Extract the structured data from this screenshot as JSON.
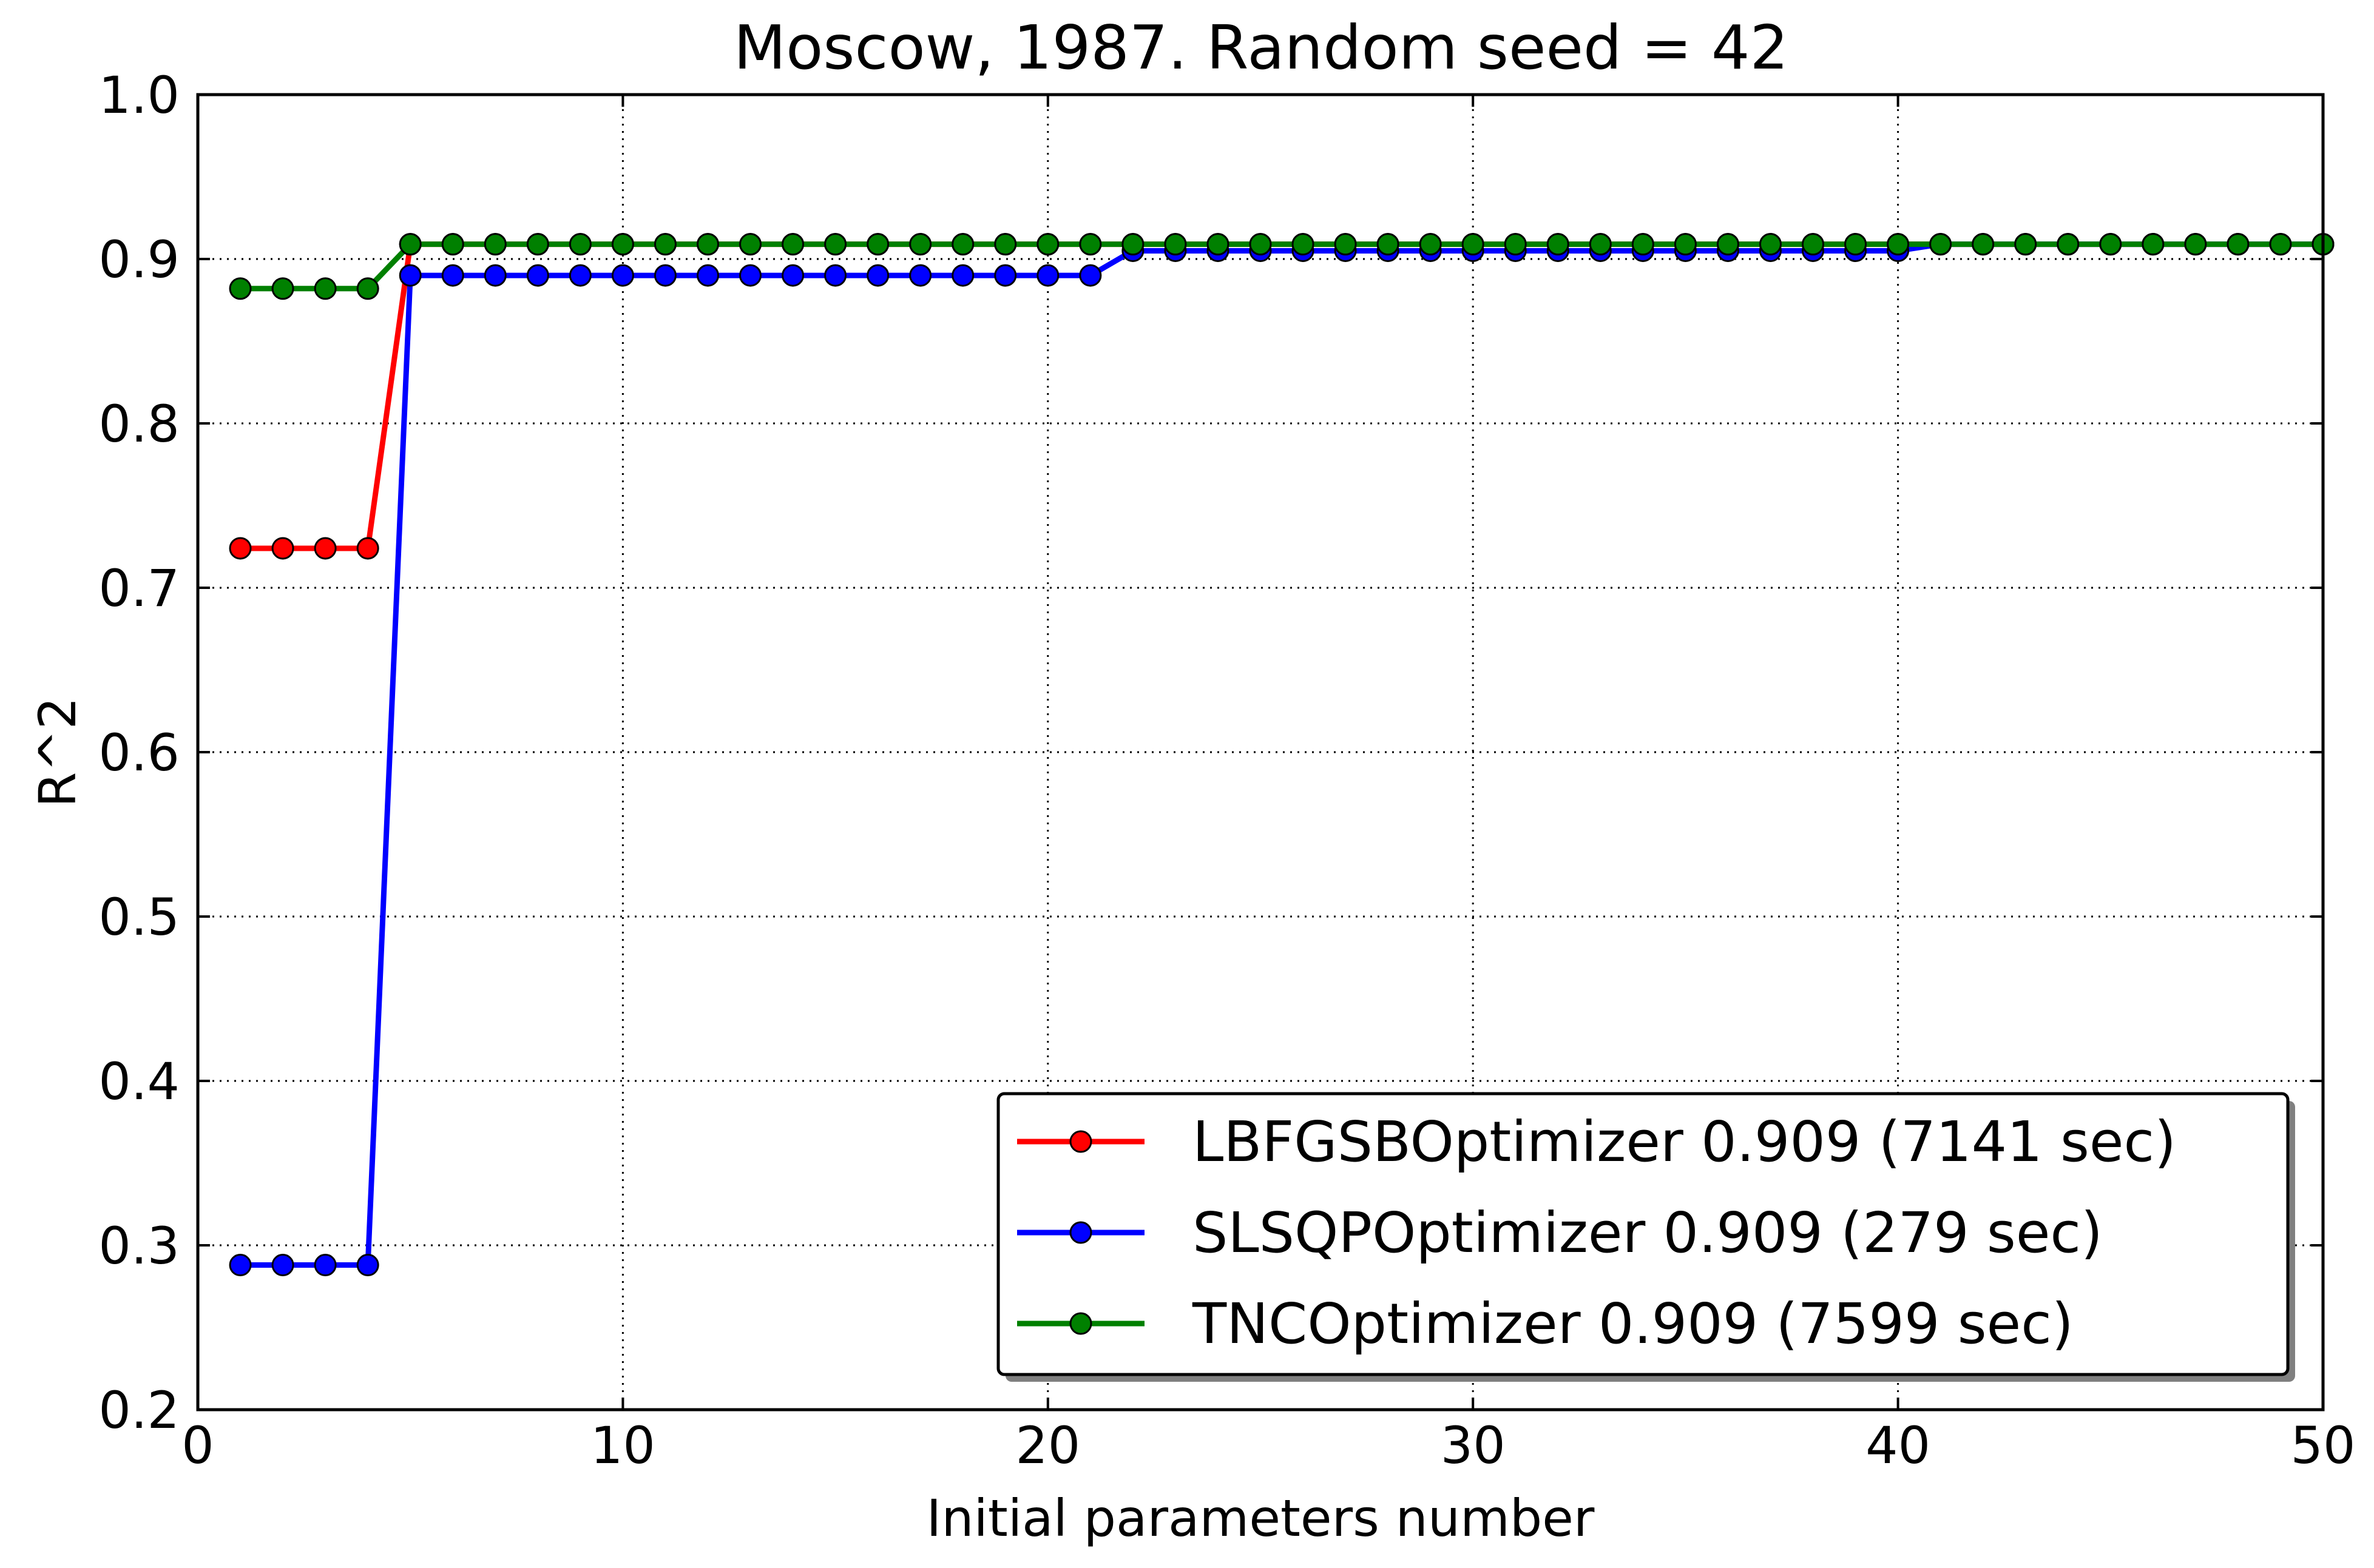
{
  "chart_data": {
    "type": "line",
    "title": "Moscow, 1987. Random seed = 42",
    "xlabel": "Initial parameters number",
    "ylabel": "R^2",
    "xlim": [
      0,
      50
    ],
    "ylim": [
      0.2,
      1.0
    ],
    "xticks": [
      0,
      10,
      20,
      30,
      40,
      50
    ],
    "xtick_labels": [
      "0",
      "10",
      "20",
      "30",
      "40",
      "50"
    ],
    "yticks": [
      0.2,
      0.3,
      0.4,
      0.5,
      0.6,
      0.7,
      0.8,
      0.9,
      1.0
    ],
    "ytick_labels": [
      "0.2",
      "0.3",
      "0.4",
      "0.5",
      "0.6",
      "0.7",
      "0.8",
      "0.9",
      "1.0"
    ],
    "grid": true,
    "legend_position": "lower-right",
    "x": [
      1,
      2,
      3,
      4,
      5,
      6,
      7,
      8,
      9,
      10,
      11,
      12,
      13,
      14,
      15,
      16,
      17,
      18,
      19,
      20,
      21,
      22,
      23,
      24,
      25,
      26,
      27,
      28,
      29,
      30,
      31,
      32,
      33,
      34,
      35,
      36,
      37,
      38,
      39,
      40,
      41,
      42,
      43,
      44,
      45,
      46,
      47,
      48,
      49,
      50
    ],
    "series": [
      {
        "name": "LBFGSBOptimizer 0.909 (7141 sec)",
        "color": "#ff0000",
        "values": [
          0.724,
          0.724,
          0.724,
          0.724,
          0.909,
          0.909,
          0.909,
          0.909,
          0.909,
          0.909,
          0.909,
          0.909,
          0.909,
          0.909,
          0.909,
          0.909,
          0.909,
          0.909,
          0.909,
          0.909,
          0.909,
          0.909,
          0.909,
          0.909,
          0.909,
          0.909,
          0.909,
          0.909,
          0.909,
          0.909,
          0.909,
          0.909,
          0.909,
          0.909,
          0.909,
          0.909,
          0.909,
          0.909,
          0.909,
          0.909,
          0.909,
          0.909,
          0.909,
          0.909,
          0.909,
          0.909,
          0.909,
          0.909,
          0.909,
          0.909
        ]
      },
      {
        "name": "SLSQPOptimizer 0.909 (279 sec)",
        "color": "#0000ff",
        "values": [
          0.288,
          0.288,
          0.288,
          0.288,
          0.89,
          0.89,
          0.89,
          0.89,
          0.89,
          0.89,
          0.89,
          0.89,
          0.89,
          0.89,
          0.89,
          0.89,
          0.89,
          0.89,
          0.89,
          0.89,
          0.89,
          0.905,
          0.905,
          0.905,
          0.905,
          0.905,
          0.905,
          0.905,
          0.905,
          0.905,
          0.905,
          0.905,
          0.905,
          0.905,
          0.905,
          0.905,
          0.905,
          0.905,
          0.905,
          0.905,
          0.909,
          0.909,
          0.909,
          0.909,
          0.909,
          0.909,
          0.909,
          0.909,
          0.909,
          0.909
        ]
      },
      {
        "name": "TNCOptimizer 0.909 (7599 sec)",
        "color": "#008000",
        "values": [
          0.882,
          0.882,
          0.882,
          0.882,
          0.909,
          0.909,
          0.909,
          0.909,
          0.909,
          0.909,
          0.909,
          0.909,
          0.909,
          0.909,
          0.909,
          0.909,
          0.909,
          0.909,
          0.909,
          0.909,
          0.909,
          0.909,
          0.909,
          0.909,
          0.909,
          0.909,
          0.909,
          0.909,
          0.909,
          0.909,
          0.909,
          0.909,
          0.909,
          0.909,
          0.909,
          0.909,
          0.909,
          0.909,
          0.909,
          0.909,
          0.909,
          0.909,
          0.909,
          0.909,
          0.909,
          0.909,
          0.909,
          0.909,
          0.909,
          0.909
        ]
      }
    ]
  }
}
